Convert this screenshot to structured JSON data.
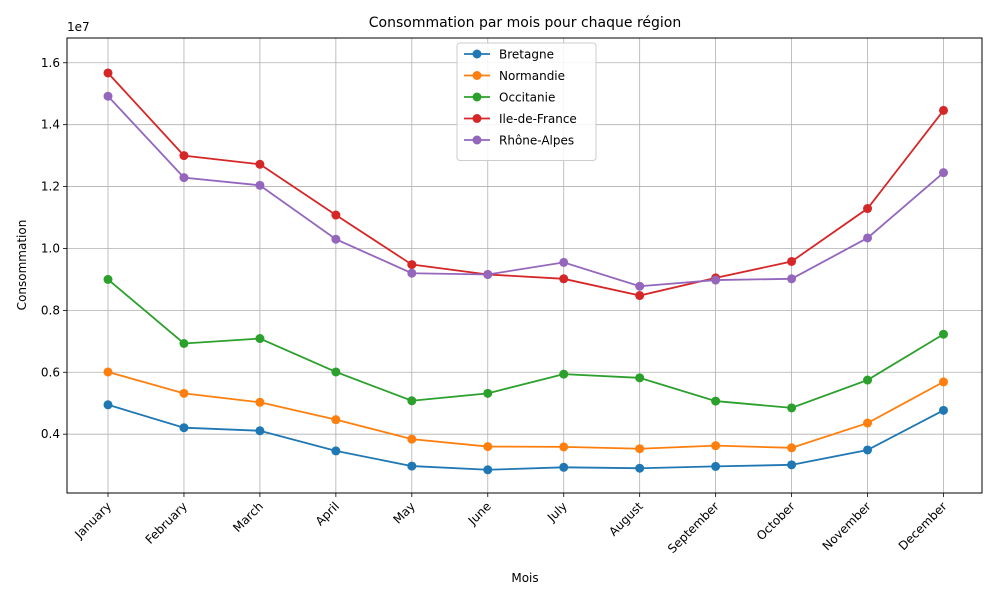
{
  "chart_data": {
    "type": "line",
    "title": "Consommation par mois pour chaque région",
    "xlabel": "Mois",
    "ylabel": "Consommation",
    "y_multiplier_label": "1e7",
    "categories": [
      "January",
      "February",
      "March",
      "April",
      "May",
      "June",
      "July",
      "August",
      "September",
      "October",
      "November",
      "December"
    ],
    "ylim": [
      2.1,
      16.8
    ],
    "y_ticks": [
      4.0,
      6.0,
      8.0,
      10.0,
      12.0,
      14.0,
      16.0
    ],
    "y_tick_labels": [
      "0.4",
      "0.6",
      "0.8",
      "1.0",
      "1.2",
      "1.4",
      "1.6"
    ],
    "grid": true,
    "legend_position": "top-center",
    "series": [
      {
        "name": "Bretagne",
        "color": "#1f77b4",
        "values": [
          4.95,
          4.21,
          4.11,
          3.46,
          2.97,
          2.85,
          2.93,
          2.9,
          2.96,
          3.01,
          3.49,
          4.77
        ]
      },
      {
        "name": "Normandie",
        "color": "#ff7f0e",
        "values": [
          6.01,
          5.32,
          5.03,
          4.47,
          3.84,
          3.6,
          3.59,
          3.53,
          3.63,
          3.56,
          4.36,
          5.69
        ]
      },
      {
        "name": "Occitanie",
        "color": "#2ca02c",
        "values": [
          9.0,
          6.93,
          7.09,
          6.01,
          5.08,
          5.32,
          5.94,
          5.82,
          5.07,
          4.85,
          5.75,
          7.23
        ]
      },
      {
        "name": "Ile-de-France",
        "color": "#d62728",
        "values": [
          15.67,
          13.0,
          12.72,
          11.08,
          9.48,
          9.16,
          9.02,
          8.48,
          9.05,
          9.58,
          11.29,
          14.46
        ]
      },
      {
        "name": "Rhône-Alpes",
        "color": "#9467bd",
        "values": [
          14.92,
          12.29,
          12.04,
          10.3,
          9.2,
          9.16,
          9.55,
          8.78,
          8.98,
          9.02,
          10.34,
          12.45
        ]
      }
    ]
  }
}
